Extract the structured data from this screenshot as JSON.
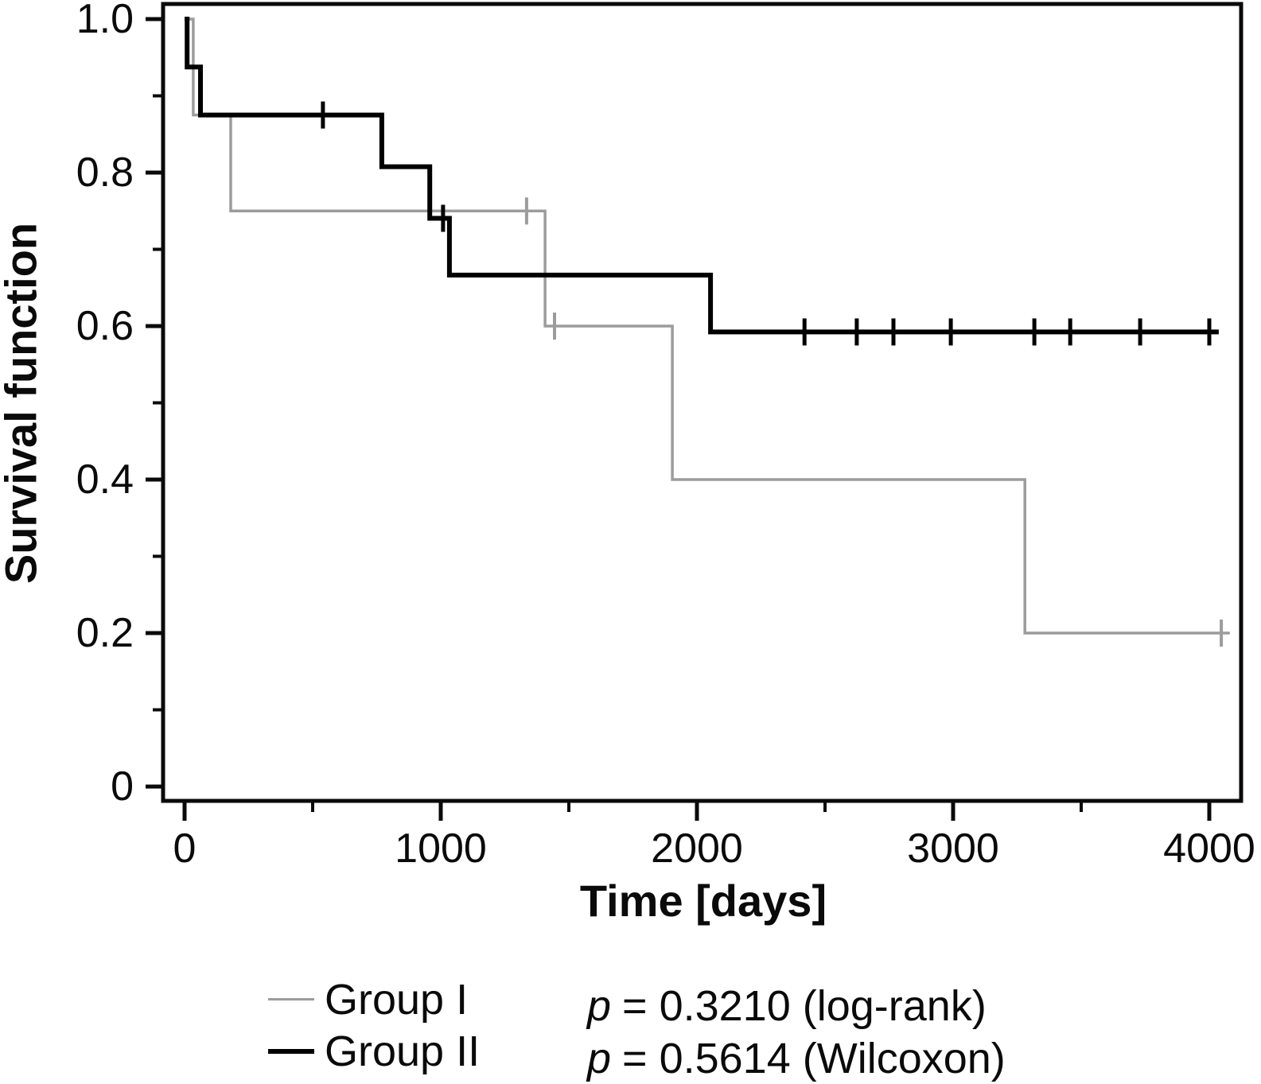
{
  "chart_data": {
    "type": "line",
    "subtype": "kaplan-meier-step",
    "title": "",
    "xlabel": "Time [days]",
    "ylabel": "Survival function",
    "xlim": [
      0,
      4200
    ],
    "ylim": [
      0,
      1.0
    ],
    "grid": false,
    "legend_position": "bottom-left",
    "x_ticks": [
      0,
      1000,
      2000,
      3000,
      4000
    ],
    "x_tick_labels": [
      "0",
      "1000",
      "2000",
      "3000",
      "4000"
    ],
    "x_minor_ticks": [
      500,
      1500,
      2500,
      3500
    ],
    "y_ticks": [
      1.0,
      0.8,
      0.6,
      0.4,
      0.2,
      0
    ],
    "y_tick_labels": [
      "1.0",
      "0.8",
      "0.6",
      "0.4",
      "0.2",
      "0"
    ],
    "y_minor_ticks": [
      0.9,
      0.7,
      0.5,
      0.3,
      0.1
    ],
    "axis_color": "#0a0a0a",
    "series": [
      {
        "name": "Group I",
        "color": "#9c9c9c",
        "line_width": 3.5,
        "censor_width": 4,
        "steps": [
          [
            0,
            1.0
          ],
          [
            34,
            0.875
          ],
          [
            180,
            0.75
          ],
          [
            1407,
            0.6
          ],
          [
            1904,
            0.4
          ],
          [
            3280,
            0.2
          ]
        ],
        "end_time": 4080,
        "censor_marks": [
          [
            1335,
            0.75
          ],
          [
            1444,
            0.6
          ],
          [
            4047,
            0.2
          ]
        ]
      },
      {
        "name": "Group II",
        "color": "#000000",
        "line_width": 6,
        "censor_width": 5,
        "steps": [
          [
            0,
            1.0
          ],
          [
            10,
            0.9375
          ],
          [
            62,
            0.875
          ],
          [
            770,
            0.8077
          ],
          [
            957,
            0.7404
          ],
          [
            1034,
            0.6664
          ],
          [
            2053,
            0.5923
          ]
        ],
        "end_time": 4037,
        "censor_marks": [
          [
            540,
            0.875
          ],
          [
            1009,
            0.7404
          ],
          [
            2420,
            0.5923
          ],
          [
            2624,
            0.5923
          ],
          [
            2767,
            0.5923
          ],
          [
            2991,
            0.5923
          ],
          [
            3317,
            0.5923
          ],
          [
            3457,
            0.5923
          ],
          [
            3730,
            0.5923
          ],
          [
            4000,
            0.5923
          ]
        ]
      }
    ],
    "annotations": [
      {
        "symbol": "p",
        "text": "= 0.3210 (log-rank)"
      },
      {
        "symbol": "p",
        "text": "= 0.5614 (Wilcoxon)"
      }
    ]
  }
}
